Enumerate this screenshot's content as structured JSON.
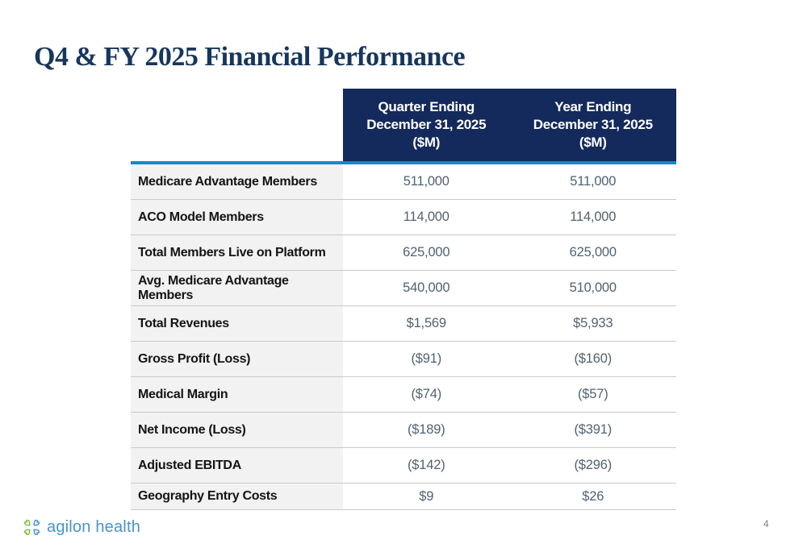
{
  "slide": {
    "title": "Q4 & FY 2025 Financial Performance",
    "page_number": "4"
  },
  "table": {
    "column_headers": [
      "Quarter Ending\nDecember 31, 2025\n($M)",
      "Year Ending\nDecember 31, 2025\n($M)"
    ],
    "rows": [
      {
        "label": "Medicare Advantage Members",
        "quarter": "511,000",
        "year": "511,000"
      },
      {
        "label": "ACO Model Members",
        "quarter": "114,000",
        "year": "114,000"
      },
      {
        "label": "Total Members Live on Platform",
        "quarter": "625,000",
        "year": "625,000"
      },
      {
        "label": "Avg. Medicare Advantage Members",
        "quarter": "540,000",
        "year": "510,000"
      },
      {
        "label": "Total Revenues",
        "quarter": "$1,569",
        "year": "$5,933"
      },
      {
        "label": "Gross Profit (Loss)",
        "quarter": "($91)",
        "year": "($160)"
      },
      {
        "label": "Medical Margin",
        "quarter": "($74)",
        "year": "($57)"
      },
      {
        "label": "Net Income (Loss)",
        "quarter": "($189)",
        "year": "($391)"
      },
      {
        "label": "Adjusted EBITDA",
        "quarter": "($142)",
        "year": "($296)"
      },
      {
        "label": "Geography Entry Costs",
        "quarter": "$9",
        "year": "$26"
      }
    ]
  },
  "footer": {
    "logo_text": "agilon health"
  },
  "colors": {
    "title": "#17365d",
    "header_bg": "#14295c",
    "accent_line": "#1488c8",
    "value_text": "#51626f",
    "logo_blue": "#4594cc",
    "logo_green": "#7ac143"
  }
}
